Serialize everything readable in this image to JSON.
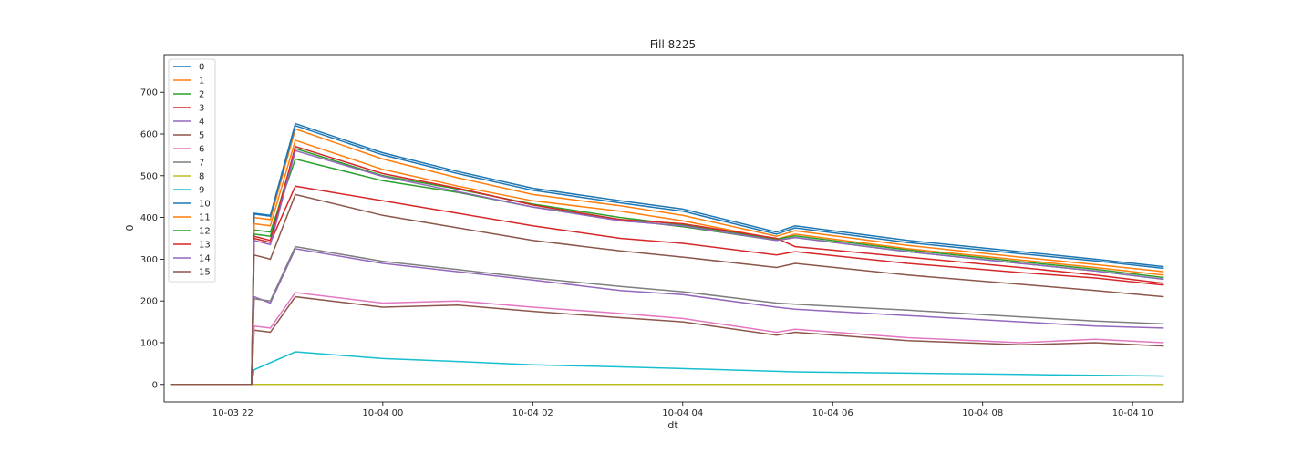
{
  "chart_data": {
    "type": "line",
    "title": "Fill 8225",
    "xlabel": "dt",
    "ylabel": "0",
    "x_range": [
      "2023-10-03 21:05",
      "2023-10-04 10:40"
    ],
    "ylim": [
      -42,
      790
    ],
    "x_ticks": [
      {
        "t": "2023-10-03 22:00",
        "label": "10-03 22"
      },
      {
        "t": "2023-10-04 00:00",
        "label": "10-04 00"
      },
      {
        "t": "2023-10-04 02:00",
        "label": "10-04 02"
      },
      {
        "t": "2023-10-04 04:00",
        "label": "10-04 04"
      },
      {
        "t": "2023-10-04 06:00",
        "label": "10-04 06"
      },
      {
        "t": "2023-10-04 08:00",
        "label": "10-04 08"
      },
      {
        "t": "2023-10-04 10:00",
        "label": "10-04 10"
      }
    ],
    "y_ticks": [
      0,
      100,
      200,
      300,
      400,
      500,
      600,
      700
    ],
    "grid": false,
    "legend_position": "top-left",
    "series": [
      {
        "name": "0",
        "color": "#1f77b4",
        "points": [
          [
            "2023-10-03 21:10",
            0
          ],
          [
            "2023-10-03 22:15",
            0
          ],
          [
            "2023-10-03 22:17",
            410
          ],
          [
            "2023-10-03 22:30",
            405
          ],
          [
            "2023-10-03 22:50",
            625
          ],
          [
            "2023-10-04 00:00",
            555
          ],
          [
            "2023-10-04 01:00",
            510
          ],
          [
            "2023-10-04 02:00",
            470
          ],
          [
            "2023-10-04 03:10",
            440
          ],
          [
            "2023-10-04 04:00",
            420
          ],
          [
            "2023-10-04 05:15",
            365
          ],
          [
            "2023-10-04 05:30",
            380
          ],
          [
            "2023-10-04 07:00",
            345
          ],
          [
            "2023-10-04 08:30",
            318
          ],
          [
            "2023-10-04 09:30",
            300
          ],
          [
            "2023-10-04 10:25",
            282
          ]
        ]
      },
      {
        "name": "1",
        "color": "#ff7f0e",
        "points": [
          [
            "2023-10-03 21:10",
            0
          ],
          [
            "2023-10-03 22:15",
            0
          ],
          [
            "2023-10-03 22:17",
            400
          ],
          [
            "2023-10-03 22:30",
            395
          ],
          [
            "2023-10-03 22:50",
            612
          ],
          [
            "2023-10-04 00:00",
            540
          ],
          [
            "2023-10-04 01:00",
            495
          ],
          [
            "2023-10-04 02:00",
            455
          ],
          [
            "2023-10-04 03:10",
            428
          ],
          [
            "2023-10-04 04:00",
            405
          ],
          [
            "2023-10-04 05:15",
            355
          ],
          [
            "2023-10-04 05:30",
            368
          ],
          [
            "2023-10-04 07:00",
            333
          ],
          [
            "2023-10-04 08:30",
            305
          ],
          [
            "2023-10-04 09:30",
            287
          ],
          [
            "2023-10-04 10:25",
            270
          ]
        ]
      },
      {
        "name": "2",
        "color": "#2ca02c",
        "points": [
          [
            "2023-10-03 21:10",
            0
          ],
          [
            "2023-10-03 22:15",
            0
          ],
          [
            "2023-10-03 22:17",
            370
          ],
          [
            "2023-10-03 22:30",
            365
          ],
          [
            "2023-10-03 22:50",
            540
          ],
          [
            "2023-10-04 00:00",
            488
          ],
          [
            "2023-10-04 01:00",
            460
          ],
          [
            "2023-10-04 02:00",
            425
          ],
          [
            "2023-10-04 03:10",
            395
          ],
          [
            "2023-10-04 04:00",
            378
          ],
          [
            "2023-10-04 05:15",
            345
          ],
          [
            "2023-10-04 05:30",
            352
          ],
          [
            "2023-10-04 07:00",
            318
          ],
          [
            "2023-10-04 08:30",
            290
          ],
          [
            "2023-10-04 09:30",
            272
          ],
          [
            "2023-10-04 10:25",
            252
          ]
        ]
      },
      {
        "name": "3",
        "color": "#d62728",
        "points": [
          [
            "2023-10-03 21:10",
            0
          ],
          [
            "2023-10-03 22:15",
            0
          ],
          [
            "2023-10-03 22:17",
            350
          ],
          [
            "2023-10-03 22:30",
            340
          ],
          [
            "2023-10-03 22:50",
            475
          ],
          [
            "2023-10-04 00:00",
            440
          ],
          [
            "2023-10-04 01:00",
            410
          ],
          [
            "2023-10-04 02:00",
            380
          ],
          [
            "2023-10-04 03:10",
            350
          ],
          [
            "2023-10-04 04:00",
            338
          ],
          [
            "2023-10-04 05:15",
            310
          ],
          [
            "2023-10-04 05:30",
            318
          ],
          [
            "2023-10-04 07:00",
            290
          ],
          [
            "2023-10-04 08:30",
            268
          ],
          [
            "2023-10-04 09:30",
            255
          ],
          [
            "2023-10-04 10:25",
            238
          ]
        ]
      },
      {
        "name": "4",
        "color": "#9467bd",
        "points": [
          [
            "2023-10-03 21:10",
            0
          ],
          [
            "2023-10-03 22:15",
            0
          ],
          [
            "2023-10-03 22:17",
            210
          ],
          [
            "2023-10-03 22:30",
            195
          ],
          [
            "2023-10-03 22:50",
            325
          ],
          [
            "2023-10-04 00:00",
            290
          ],
          [
            "2023-10-04 01:00",
            270
          ],
          [
            "2023-10-04 02:00",
            250
          ],
          [
            "2023-10-04 03:10",
            225
          ],
          [
            "2023-10-04 04:00",
            215
          ],
          [
            "2023-10-04 05:15",
            185
          ],
          [
            "2023-10-04 05:30",
            180
          ],
          [
            "2023-10-04 07:00",
            165
          ],
          [
            "2023-10-04 08:30",
            150
          ],
          [
            "2023-10-04 09:30",
            140
          ],
          [
            "2023-10-04 10:25",
            135
          ]
        ]
      },
      {
        "name": "5",
        "color": "#8c564b",
        "points": [
          [
            "2023-10-03 21:10",
            0
          ],
          [
            "2023-10-03 22:15",
            0
          ],
          [
            "2023-10-03 22:17",
            130
          ],
          [
            "2023-10-03 22:30",
            125
          ],
          [
            "2023-10-03 22:50",
            210
          ],
          [
            "2023-10-04 00:00",
            185
          ],
          [
            "2023-10-04 01:00",
            190
          ],
          [
            "2023-10-04 02:00",
            175
          ],
          [
            "2023-10-04 03:10",
            160
          ],
          [
            "2023-10-04 04:00",
            150
          ],
          [
            "2023-10-04 05:15",
            118
          ],
          [
            "2023-10-04 05:30",
            125
          ],
          [
            "2023-10-04 07:00",
            105
          ],
          [
            "2023-10-04 08:30",
            95
          ],
          [
            "2023-10-04 09:30",
            100
          ],
          [
            "2023-10-04 10:25",
            92
          ]
        ]
      },
      {
        "name": "6",
        "color": "#e377c2",
        "points": [
          [
            "2023-10-03 21:10",
            0
          ],
          [
            "2023-10-03 22:15",
            0
          ],
          [
            "2023-10-03 22:17",
            140
          ],
          [
            "2023-10-03 22:30",
            135
          ],
          [
            "2023-10-03 22:50",
            220
          ],
          [
            "2023-10-04 00:00",
            195
          ],
          [
            "2023-10-04 01:00",
            200
          ],
          [
            "2023-10-04 02:00",
            185
          ],
          [
            "2023-10-04 03:10",
            170
          ],
          [
            "2023-10-04 04:00",
            158
          ],
          [
            "2023-10-04 05:15",
            125
          ],
          [
            "2023-10-04 05:30",
            132
          ],
          [
            "2023-10-04 07:00",
            112
          ],
          [
            "2023-10-04 08:30",
            100
          ],
          [
            "2023-10-04 09:30",
            108
          ],
          [
            "2023-10-04 10:25",
            100
          ]
        ]
      },
      {
        "name": "7",
        "color": "#7f7f7f",
        "points": [
          [
            "2023-10-03 21:10",
            0
          ],
          [
            "2023-10-03 22:15",
            0
          ],
          [
            "2023-10-03 22:17",
            205
          ],
          [
            "2023-10-03 22:30",
            200
          ],
          [
            "2023-10-03 22:50",
            330
          ],
          [
            "2023-10-04 00:00",
            295
          ],
          [
            "2023-10-04 01:00",
            275
          ],
          [
            "2023-10-04 02:00",
            255
          ],
          [
            "2023-10-04 03:10",
            235
          ],
          [
            "2023-10-04 04:00",
            222
          ],
          [
            "2023-10-04 05:15",
            195
          ],
          [
            "2023-10-04 05:30",
            192
          ],
          [
            "2023-10-04 07:00",
            178
          ],
          [
            "2023-10-04 08:30",
            162
          ],
          [
            "2023-10-04 09:30",
            152
          ],
          [
            "2023-10-04 10:25",
            145
          ]
        ]
      },
      {
        "name": "8",
        "color": "#bcbd22",
        "points": [
          [
            "2023-10-03 21:10",
            0
          ],
          [
            "2023-10-04 10:25",
            0
          ]
        ]
      },
      {
        "name": "9",
        "color": "#17becf",
        "points": [
          [
            "2023-10-03 21:10",
            0
          ],
          [
            "2023-10-03 22:15",
            0
          ],
          [
            "2023-10-03 22:17",
            35
          ],
          [
            "2023-10-03 22:50",
            78
          ],
          [
            "2023-10-04 00:00",
            62
          ],
          [
            "2023-10-04 01:00",
            55
          ],
          [
            "2023-10-04 02:00",
            47
          ],
          [
            "2023-10-04 03:10",
            42
          ],
          [
            "2023-10-04 04:00",
            38
          ],
          [
            "2023-10-04 05:30",
            30
          ],
          [
            "2023-10-04 07:00",
            27
          ],
          [
            "2023-10-04 08:30",
            24
          ],
          [
            "2023-10-04 10:25",
            20
          ]
        ]
      },
      {
        "name": "10",
        "color": "#1f77b4",
        "points": [
          [
            "2023-10-03 21:10",
            0
          ],
          [
            "2023-10-03 22:15",
            0
          ],
          [
            "2023-10-03 22:17",
            408
          ],
          [
            "2023-10-03 22:30",
            403
          ],
          [
            "2023-10-03 22:50",
            620
          ],
          [
            "2023-10-04 00:00",
            550
          ],
          [
            "2023-10-04 01:00",
            505
          ],
          [
            "2023-10-04 02:00",
            465
          ],
          [
            "2023-10-04 03:10",
            435
          ],
          [
            "2023-10-04 04:00",
            415
          ],
          [
            "2023-10-04 05:15",
            360
          ],
          [
            "2023-10-04 05:30",
            375
          ],
          [
            "2023-10-04 07:00",
            340
          ],
          [
            "2023-10-04 08:30",
            313
          ],
          [
            "2023-10-04 09:30",
            296
          ],
          [
            "2023-10-04 10:25",
            278
          ]
        ]
      },
      {
        "name": "11",
        "color": "#ff7f0e",
        "points": [
          [
            "2023-10-03 21:10",
            0
          ],
          [
            "2023-10-03 22:15",
            0
          ],
          [
            "2023-10-03 22:17",
            385
          ],
          [
            "2023-10-03 22:30",
            380
          ],
          [
            "2023-10-03 22:50",
            585
          ],
          [
            "2023-10-04 00:00",
            515
          ],
          [
            "2023-10-04 01:00",
            475
          ],
          [
            "2023-10-04 02:00",
            440
          ],
          [
            "2023-10-04 03:10",
            415
          ],
          [
            "2023-10-04 04:00",
            392
          ],
          [
            "2023-10-04 05:15",
            348
          ],
          [
            "2023-10-04 05:30",
            360
          ],
          [
            "2023-10-04 07:00",
            325
          ],
          [
            "2023-10-04 08:30",
            298
          ],
          [
            "2023-10-04 09:30",
            280
          ],
          [
            "2023-10-04 10:25",
            262
          ]
        ]
      },
      {
        "name": "12",
        "color": "#2ca02c",
        "points": [
          [
            "2023-10-03 21:10",
            0
          ],
          [
            "2023-10-03 22:15",
            0
          ],
          [
            "2023-10-03 22:17",
            360
          ],
          [
            "2023-10-03 22:30",
            355
          ],
          [
            "2023-10-03 22:50",
            565
          ],
          [
            "2023-10-04 00:00",
            500
          ],
          [
            "2023-10-04 01:00",
            468
          ],
          [
            "2023-10-04 02:00",
            432
          ],
          [
            "2023-10-04 03:10",
            400
          ],
          [
            "2023-10-04 04:00",
            382
          ],
          [
            "2023-10-04 05:15",
            348
          ],
          [
            "2023-10-04 05:30",
            356
          ],
          [
            "2023-10-04 07:00",
            322
          ],
          [
            "2023-10-04 08:30",
            294
          ],
          [
            "2023-10-04 09:30",
            276
          ],
          [
            "2023-10-04 10:25",
            256
          ]
        ]
      },
      {
        "name": "13",
        "color": "#d62728",
        "points": [
          [
            "2023-10-03 21:10",
            0
          ],
          [
            "2023-10-03 22:15",
            0
          ],
          [
            "2023-10-03 22:17",
            355
          ],
          [
            "2023-10-03 22:30",
            345
          ],
          [
            "2023-10-03 22:50",
            570
          ],
          [
            "2023-10-04 00:00",
            505
          ],
          [
            "2023-10-04 01:00",
            470
          ],
          [
            "2023-10-04 02:00",
            430
          ],
          [
            "2023-10-04 03:10",
            395
          ],
          [
            "2023-10-04 04:00",
            385
          ],
          [
            "2023-10-04 05:15",
            350
          ],
          [
            "2023-10-04 05:30",
            330
          ],
          [
            "2023-10-04 07:00",
            305
          ],
          [
            "2023-10-04 08:30",
            280
          ],
          [
            "2023-10-04 09:30",
            262
          ],
          [
            "2023-10-04 10:25",
            242
          ]
        ]
      },
      {
        "name": "14",
        "color": "#9467bd",
        "points": [
          [
            "2023-10-03 21:10",
            0
          ],
          [
            "2023-10-03 22:15",
            0
          ],
          [
            "2023-10-03 22:17",
            345
          ],
          [
            "2023-10-03 22:30",
            335
          ],
          [
            "2023-10-03 22:50",
            560
          ],
          [
            "2023-10-04 00:00",
            498
          ],
          [
            "2023-10-04 01:00",
            462
          ],
          [
            "2023-10-04 02:00",
            425
          ],
          [
            "2023-10-04 03:10",
            392
          ],
          [
            "2023-10-04 04:00",
            380
          ],
          [
            "2023-10-04 05:15",
            345
          ],
          [
            "2023-10-04 05:30",
            352
          ],
          [
            "2023-10-04 07:00",
            318
          ],
          [
            "2023-10-04 08:30",
            290
          ],
          [
            "2023-10-04 09:30",
            272
          ],
          [
            "2023-10-04 10:25",
            252
          ]
        ]
      },
      {
        "name": "15",
        "color": "#8c564b",
        "points": [
          [
            "2023-10-03 21:10",
            0
          ],
          [
            "2023-10-03 22:15",
            0
          ],
          [
            "2023-10-03 22:17",
            310
          ],
          [
            "2023-10-03 22:30",
            300
          ],
          [
            "2023-10-03 22:50",
            455
          ],
          [
            "2023-10-04 00:00",
            405
          ],
          [
            "2023-10-04 01:00",
            375
          ],
          [
            "2023-10-04 02:00",
            345
          ],
          [
            "2023-10-04 03:10",
            320
          ],
          [
            "2023-10-04 04:00",
            305
          ],
          [
            "2023-10-04 05:15",
            280
          ],
          [
            "2023-10-04 05:30",
            290
          ],
          [
            "2023-10-04 07:00",
            262
          ],
          [
            "2023-10-04 08:30",
            240
          ],
          [
            "2023-10-04 09:30",
            225
          ],
          [
            "2023-10-04 10:25",
            210
          ]
        ]
      }
    ]
  }
}
